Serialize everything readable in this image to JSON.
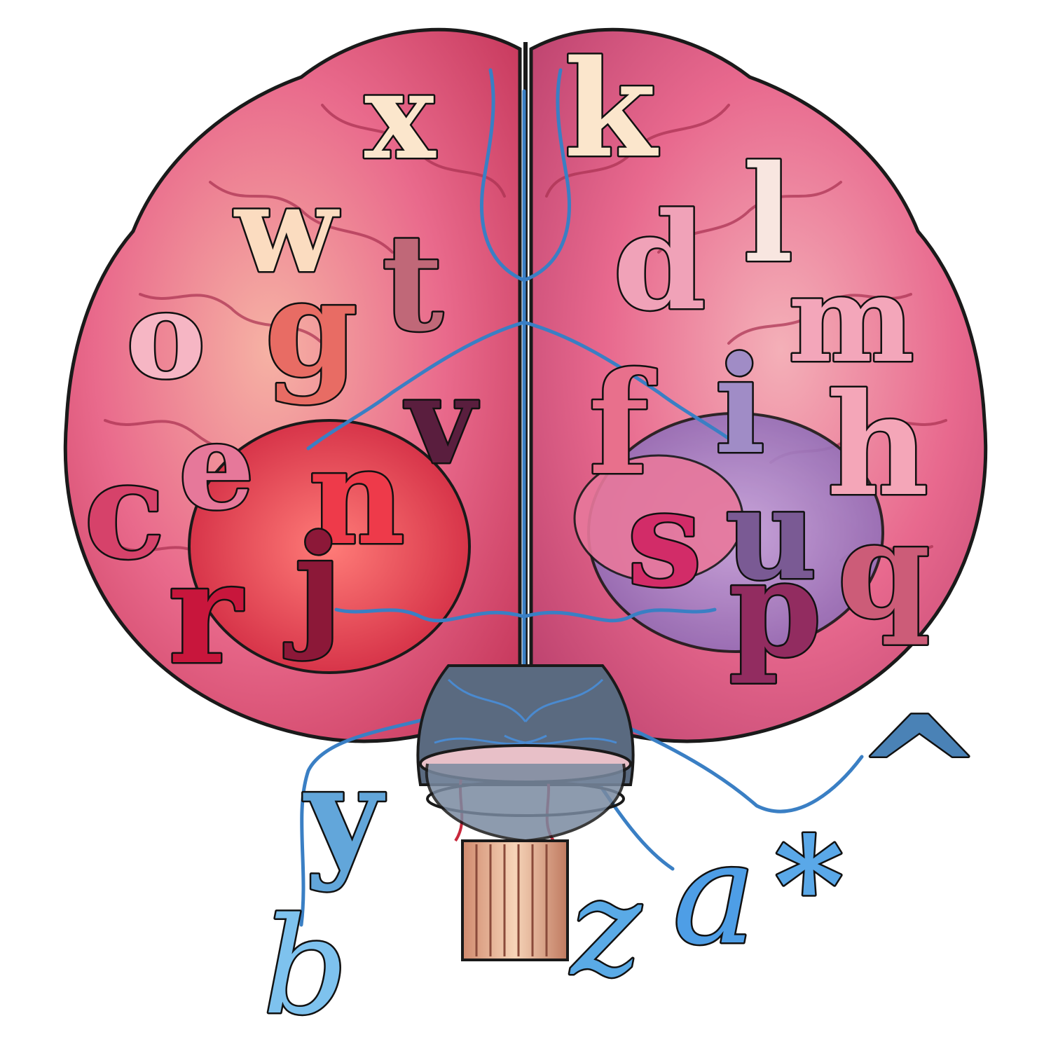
{
  "letters": {
    "x": {
      "char": "x",
      "color": "#fbe6cc"
    },
    "k": {
      "char": "k",
      "color": "#fbe6cc"
    },
    "l": {
      "char": "l",
      "color": "#f8e6e0"
    },
    "w": {
      "char": "w",
      "color": "#fbdcc0"
    },
    "t": {
      "char": "t",
      "color": "#c06878"
    },
    "d": {
      "char": "d",
      "color": "#f0a2b8"
    },
    "m": {
      "char": "m",
      "color": "#f3a6ba"
    },
    "o": {
      "char": "o",
      "color": "#f6b6c4"
    },
    "g": {
      "char": "g",
      "color": "#e86c64"
    },
    "v": {
      "char": "v",
      "color": "#5a1e3e"
    },
    "f": {
      "char": "f",
      "color": "#e8708c"
    },
    "i": {
      "char": "i",
      "color": "#a08cc6"
    },
    "h": {
      "char": "h",
      "color": "#f4a6b8"
    },
    "e": {
      "char": "e",
      "color": "#e6789a"
    },
    "c": {
      "char": "c",
      "color": "#d6426a"
    },
    "n": {
      "char": "n",
      "color": "#ee3a4a"
    },
    "s": {
      "char": "s",
      "color": "#d22c68"
    },
    "u": {
      "char": "u",
      "color": "#7a5a94"
    },
    "q": {
      "char": "q",
      "color": "#cc5c78"
    },
    "r": {
      "char": "r",
      "color": "#c8163c"
    },
    "j": {
      "char": "j",
      "color": "#8c1838"
    },
    "p": {
      "char": "p",
      "color": "#922c60"
    },
    "y": {
      "char": "y",
      "color": "#62a6da"
    },
    "b": {
      "char": "b",
      "color": "#7ec2ee"
    },
    "z": {
      "char": "z",
      "color": "#5aaae6"
    },
    "a": {
      "char": "a",
      "color": "#4e9ee6"
    },
    "asterisk": {
      "char": "*",
      "color": "#5aa8e8"
    },
    "caret": {
      "char": "^",
      "color": "#4a82b6"
    }
  },
  "colors": {
    "brain_pink": "#e76388",
    "brain_light": "#f4a3a8",
    "brain_dark": "#c23a62",
    "vessel_blue": "#3a7fc4",
    "outline": "#1a1a1a"
  },
  "icons": [
    "brain-illustration",
    "spinal-cord",
    "blood-vessels",
    "nerve-wires"
  ]
}
